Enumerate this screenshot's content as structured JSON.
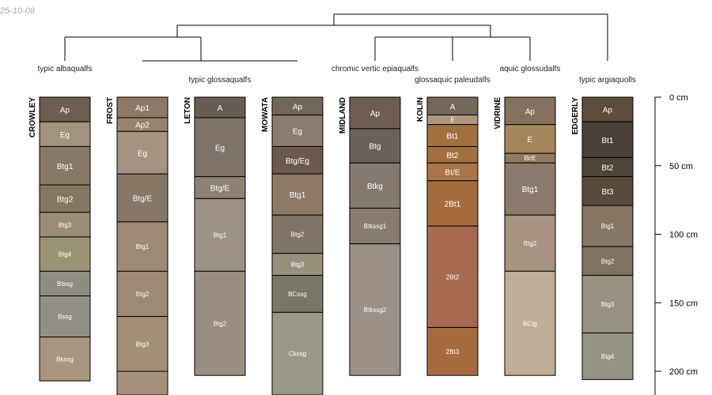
{
  "stamp": "25-10-08",
  "depth_unit": "cm",
  "depth_ticks": [
    {
      "depth": 0,
      "label": "0 cm"
    },
    {
      "depth": 50,
      "label": "50 cm"
    },
    {
      "depth": 100,
      "label": "100 cm"
    },
    {
      "depth": 150,
      "label": "150 cm"
    },
    {
      "depth": 200,
      "label": "200 cm"
    }
  ],
  "groups": [
    {
      "name": "typic albaqualfs"
    },
    {
      "name": "typic glossaqualfs"
    },
    {
      "name": "chromic vertic epiaqualfs"
    },
    {
      "name": "glossaquic paleudalfs"
    },
    {
      "name": "aquic glossudalfs"
    },
    {
      "name": "typic argiaquolls"
    }
  ],
  "profiles": [
    {
      "name": "CROWLEY",
      "horizons": [
        {
          "name": "Ap",
          "top": 0,
          "bottom": 18,
          "color": "#6e5d50"
        },
        {
          "name": "Eg",
          "top": 18,
          "bottom": 36,
          "color": "#a39480"
        },
        {
          "name": "Btg1",
          "top": 36,
          "bottom": 64,
          "color": "#877868"
        },
        {
          "name": "Btg2",
          "top": 64,
          "bottom": 84,
          "color": "#857862"
        },
        {
          "name": "Btg3",
          "top": 84,
          "bottom": 102,
          "color": "#9c8c74"
        },
        {
          "name": "Btg4",
          "top": 102,
          "bottom": 127,
          "color": "#9b9474"
        },
        {
          "name": "Btssg",
          "top": 127,
          "bottom": 145,
          "color": "#8f8d80"
        },
        {
          "name": "Bssg",
          "top": 145,
          "bottom": 175,
          "color": "#938f86"
        },
        {
          "name": "Bkssg",
          "top": 175,
          "bottom": 207,
          "color": "#a8957e"
        }
      ]
    },
    {
      "name": "FROST",
      "horizons": [
        {
          "name": "Ap1",
          "top": 0,
          "bottom": 15,
          "color": "#8c7a66"
        },
        {
          "name": "Ap2",
          "top": 15,
          "bottom": 25,
          "color": "#95836e"
        },
        {
          "name": "Eg",
          "top": 25,
          "bottom": 56,
          "color": "#a49380"
        },
        {
          "name": "Btg/E",
          "top": 56,
          "bottom": 91,
          "color": "#877767"
        },
        {
          "name": "Btg1",
          "top": 91,
          "bottom": 127,
          "color": "#9c8a76"
        },
        {
          "name": "Btg2",
          "top": 127,
          "bottom": 160,
          "color": "#9c8a74"
        },
        {
          "name": "Btg3",
          "top": 160,
          "bottom": 200,
          "color": "#a18f76"
        },
        {
          "name": "",
          "top": 200,
          "bottom": 220,
          "color": "#a39279"
        }
      ]
    },
    {
      "name": "LETON",
      "horizons": [
        {
          "name": "A",
          "top": 0,
          "bottom": 15,
          "color": "#675d53"
        },
        {
          "name": "Eg",
          "top": 15,
          "bottom": 58,
          "color": "#7e746a"
        },
        {
          "name": "Btg/E",
          "top": 58,
          "bottom": 74,
          "color": "#8d8174"
        },
        {
          "name": "Btg1",
          "top": 74,
          "bottom": 127,
          "color": "#9d9286"
        },
        {
          "name": "Btg2",
          "top": 127,
          "bottom": 203,
          "color": "#9a8e81"
        }
      ]
    },
    {
      "name": "MOWATA",
      "horizons": [
        {
          "name": "Ap",
          "top": 0,
          "bottom": 13,
          "color": "#73665a"
        },
        {
          "name": "Eg",
          "top": 13,
          "bottom": 36,
          "color": "#8a7c6e"
        },
        {
          "name": "Btg/Eg",
          "top": 36,
          "bottom": 56,
          "color": "#6b5a4c"
        },
        {
          "name": "Btg1",
          "top": 56,
          "bottom": 86,
          "color": "#8c7966"
        },
        {
          "name": "Btg2",
          "top": 86,
          "bottom": 114,
          "color": "#807566"
        },
        {
          "name": "Btg3",
          "top": 114,
          "bottom": 130,
          "color": "#97907c"
        },
        {
          "name": "BCssg",
          "top": 130,
          "bottom": 157,
          "color": "#7b7768"
        },
        {
          "name": "Ckssg",
          "top": 157,
          "bottom": 220,
          "color": "#9a9884"
        }
      ]
    },
    {
      "name": "MIDLAND",
      "horizons": [
        {
          "name": "Ap",
          "top": 0,
          "bottom": 23,
          "color": "#6e5e50"
        },
        {
          "name": "Btg",
          "top": 23,
          "bottom": 48,
          "color": "#6a615a"
        },
        {
          "name": "Btkg",
          "top": 48,
          "bottom": 81,
          "color": "#857a70"
        },
        {
          "name": "Btkssg1",
          "top": 81,
          "bottom": 107,
          "color": "#887c70"
        },
        {
          "name": "Btkssg2",
          "top": 107,
          "bottom": 203,
          "color": "#9c9188"
        }
      ]
    },
    {
      "name": "KOLIN",
      "horizons": [
        {
          "name": "A",
          "top": 0,
          "bottom": 13,
          "color": "#75675a"
        },
        {
          "name": "E",
          "top": 13,
          "bottom": 20,
          "color": "#ad9a7e"
        },
        {
          "name": "Bt1",
          "top": 20,
          "bottom": 36,
          "color": "#a0713e"
        },
        {
          "name": "Bt2",
          "top": 36,
          "bottom": 48,
          "color": "#a26f40"
        },
        {
          "name": "Bt/E",
          "top": 48,
          "bottom": 61,
          "color": "#a87448"
        },
        {
          "name": "2Bt1",
          "top": 61,
          "bottom": 94,
          "color": "#a46c3e"
        },
        {
          "name": "2Bt2",
          "top": 94,
          "bottom": 168,
          "color": "#a66a50"
        },
        {
          "name": "2Bt3",
          "top": 168,
          "bottom": 203,
          "color": "#a86b40"
        }
      ]
    },
    {
      "name": "VIDRINE",
      "horizons": [
        {
          "name": "Ap",
          "top": 0,
          "bottom": 20,
          "color": "#84725e"
        },
        {
          "name": "E",
          "top": 20,
          "bottom": 41,
          "color": "#a5865c"
        },
        {
          "name": "Bt/E",
          "top": 41,
          "bottom": 48,
          "color": "#8f7a5e"
        },
        {
          "name": "Btg1",
          "top": 48,
          "bottom": 86,
          "color": "#8c7b6c"
        },
        {
          "name": "Btg2",
          "top": 86,
          "bottom": 127,
          "color": "#a69380"
        },
        {
          "name": "BCtg",
          "top": 127,
          "bottom": 203,
          "color": "#bfae96"
        }
      ]
    },
    {
      "name": "EDGERLY",
      "horizons": [
        {
          "name": "Ap",
          "top": 0,
          "bottom": 18,
          "color": "#5e4c3c"
        },
        {
          "name": "Bt1",
          "top": 18,
          "bottom": 44,
          "color": "#4a4038"
        },
        {
          "name": "Bt2",
          "top": 44,
          "bottom": 58,
          "color": "#4e443a"
        },
        {
          "name": "Bt3",
          "top": 58,
          "bottom": 79,
          "color": "#5a4a3c"
        },
        {
          "name": "Btg1",
          "top": 79,
          "bottom": 109,
          "color": "#857666"
        },
        {
          "name": "Btg2",
          "top": 109,
          "bottom": 130,
          "color": "#807360"
        },
        {
          "name": "Btg3",
          "top": 130,
          "bottom": 172,
          "color": "#979282"
        },
        {
          "name": "Btg4",
          "top": 172,
          "bottom": 206,
          "color": "#989484"
        }
      ]
    }
  ]
}
